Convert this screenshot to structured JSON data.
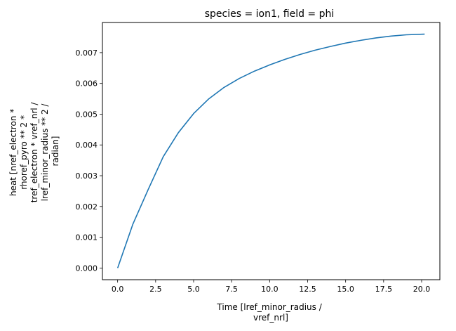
{
  "chart_data": {
    "type": "line",
    "title": "species = ion1, field = phi",
    "xlabel_lines": [
      "Time [lref_minor_radius /",
      "vref_nrl]"
    ],
    "ylabel_lines": [
      "heat [nref_electron *",
      "rhoref_pyro ** 2 *",
      "tref_electron * vref_nrl /",
      "lref_minor_radius ** 2 /",
      "radian]"
    ],
    "xlim": [
      -1.0,
      21.2
    ],
    "ylim": [
      -0.00038,
      0.00798
    ],
    "xticks": [
      0.0,
      2.5,
      5.0,
      7.5,
      10.0,
      12.5,
      15.0,
      17.5,
      20.0
    ],
    "xtick_labels": [
      "0.0",
      "2.5",
      "5.0",
      "7.5",
      "10.0",
      "12.5",
      "15.0",
      "17.5",
      "20.0"
    ],
    "yticks": [
      0.0,
      0.001,
      0.002,
      0.003,
      0.004,
      0.005,
      0.006,
      0.007
    ],
    "ytick_labels": [
      "0.000",
      "0.001",
      "0.002",
      "0.003",
      "0.004",
      "0.005",
      "0.006",
      "0.007"
    ],
    "grid": false,
    "line_color": "#1f77b4",
    "series": [
      {
        "x": [
          0,
          1,
          2,
          3,
          4,
          5,
          6,
          7,
          8,
          9,
          10,
          11,
          12,
          13,
          14,
          15,
          16,
          17,
          18,
          19,
          20.2
        ],
        "y": [
          0.0,
          0.00142,
          0.00254,
          0.00362,
          0.0044,
          0.00502,
          0.0055,
          0.00587,
          0.00616,
          0.0064,
          0.0066,
          0.00678,
          0.00694,
          0.00708,
          0.0072,
          0.00731,
          0.0074,
          0.00748,
          0.00754,
          0.00758,
          0.0076
        ]
      }
    ]
  }
}
